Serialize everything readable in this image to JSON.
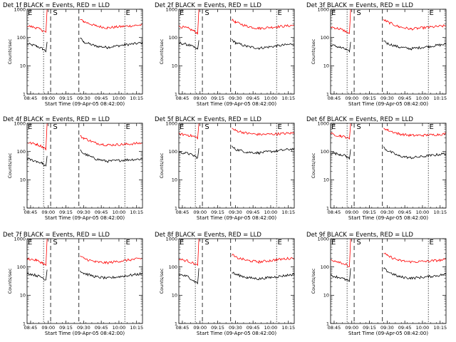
{
  "figure": {
    "background": "#ffffff",
    "colors": {
      "events": "#000000",
      "lld": "#ff0000"
    }
  },
  "chart_data": [
    {
      "type": "line",
      "title": "Det 1f BLACK = Events, RED = LLD",
      "xlabel": "Start Time (09-Apr-05 08:42:00)",
      "ylabel": "Counts/sec",
      "yscale": "log",
      "ylim": [
        1,
        1000
      ],
      "x_ticks": [
        "08:45",
        "09:00",
        "09:15",
        "09:30",
        "09:45",
        "10:00",
        "10:15"
      ],
      "y_ticks": [
        "1",
        "10",
        "100",
        "1000"
      ],
      "markers": {
        "left": "E",
        "middle": "S",
        "right": "E"
      },
      "legend": "none (encoded in title)",
      "grid": false,
      "series": [
        {
          "name": "Events",
          "color": "#000000",
          "x": [
            "08:42",
            "08:50",
            "08:55",
            "08:58",
            "08:59",
            "09:26",
            "09:27",
            "09:30",
            "09:40",
            "09:50",
            "10:05",
            "10:20"
          ],
          "values": [
            60,
            50,
            40,
            33,
            70,
            null,
            95,
            70,
            50,
            45,
            55,
            65
          ]
        },
        {
          "name": "LLD",
          "color": "#ff0000",
          "x": [
            "08:42",
            "08:50",
            "08:55",
            "08:58",
            "08:59",
            "09:26",
            "09:27",
            "09:30",
            "09:40",
            "09:50",
            "10:05",
            "10:20"
          ],
          "values": [
            260,
            220,
            180,
            150,
            1000,
            null,
            430,
            370,
            260,
            220,
            250,
            280
          ]
        }
      ]
    },
    {
      "type": "line",
      "title": "Det 2f BLACK = Events, RED = LLD",
      "xlabel": "Start Time (09-Apr-05 08:42:00)",
      "ylabel": "Counts/sec",
      "yscale": "log",
      "ylim": [
        1,
        1000
      ],
      "x_ticks": [
        "08:45",
        "09:00",
        "09:15",
        "09:30",
        "09:45",
        "10:00",
        "10:15"
      ],
      "y_ticks": [
        "1",
        "10",
        "100",
        "1000"
      ],
      "markers": {
        "left": "E",
        "middle": "S",
        "right": "E"
      },
      "legend": "none (encoded in title)",
      "grid": false,
      "series": [
        {
          "name": "Events",
          "color": "#000000",
          "x": [
            "08:42",
            "08:50",
            "08:55",
            "08:58",
            "08:59",
            "09:26",
            "09:27",
            "09:30",
            "09:40",
            "09:50",
            "10:05",
            "10:20"
          ],
          "values": [
            65,
            55,
            45,
            38,
            80,
            null,
            85,
            65,
            48,
            42,
            50,
            60
          ]
        },
        {
          "name": "LLD",
          "color": "#ff0000",
          "x": [
            "08:42",
            "08:50",
            "08:55",
            "08:58",
            "08:59",
            "09:26",
            "09:27",
            "09:30",
            "09:40",
            "09:50",
            "10:05",
            "10:20"
          ],
          "values": [
            250,
            210,
            170,
            140,
            1000,
            null,
            420,
            350,
            250,
            210,
            240,
            270
          ]
        }
      ]
    },
    {
      "type": "line",
      "title": "Det 3f BLACK = Events, RED = LLD",
      "xlabel": "Start Time (09-Apr-05 08:42:00)",
      "ylabel": "Counts/sec",
      "yscale": "log",
      "ylim": [
        1,
        1000
      ],
      "x_ticks": [
        "08:45",
        "09:00",
        "09:15",
        "09:30",
        "09:45",
        "10:00",
        "10:15"
      ],
      "y_ticks": [
        "1",
        "10",
        "100",
        "1000"
      ],
      "markers": {
        "left": "E",
        "middle": "S",
        "right": "E"
      },
      "legend": "none (encoded in title)",
      "grid": false,
      "series": [
        {
          "name": "Events",
          "color": "#000000",
          "x": [
            "08:42",
            "08:50",
            "08:55",
            "08:58",
            "08:59",
            "09:26",
            "09:27",
            "09:30",
            "09:40",
            "09:50",
            "10:05",
            "10:20"
          ],
          "values": [
            55,
            45,
            38,
            30,
            70,
            null,
            80,
            62,
            46,
            40,
            48,
            58
          ]
        },
        {
          "name": "LLD",
          "color": "#ff0000",
          "x": [
            "08:42",
            "08:50",
            "08:55",
            "08:58",
            "08:59",
            "09:26",
            "09:27",
            "09:30",
            "09:40",
            "09:50",
            "10:05",
            "10:20"
          ],
          "values": [
            240,
            200,
            165,
            135,
            1000,
            null,
            430,
            360,
            240,
            200,
            230,
            260
          ]
        }
      ]
    },
    {
      "type": "line",
      "title": "Det 4f BLACK = Events, RED = LLD",
      "xlabel": "Start Time (09-Apr-05 08:42:00)",
      "ylabel": "Counts/sec",
      "yscale": "log",
      "ylim": [
        1,
        1000
      ],
      "x_ticks": [
        "08:45",
        "09:00",
        "09:15",
        "09:30",
        "09:45",
        "10:00",
        "10:15"
      ],
      "y_ticks": [
        "1",
        "10",
        "100",
        "1000"
      ],
      "markers": {
        "left": "E",
        "middle": "S",
        "right": "E"
      },
      "legend": "none (encoded in title)",
      "grid": false,
      "series": [
        {
          "name": "Events",
          "color": "#000000",
          "x": [
            "08:42",
            "08:50",
            "08:55",
            "08:58",
            "08:59",
            "09:26",
            "09:27",
            "09:30",
            "09:40",
            "09:50",
            "10:05",
            "10:20"
          ],
          "values": [
            55,
            45,
            38,
            30,
            70,
            null,
            110,
            85,
            55,
            45,
            50,
            55
          ]
        },
        {
          "name": "LLD",
          "color": "#ff0000",
          "x": [
            "08:42",
            "08:50",
            "08:55",
            "08:58",
            "08:59",
            "09:26",
            "09:27",
            "09:30",
            "09:40",
            "09:50",
            "10:05",
            "10:20"
          ],
          "values": [
            210,
            180,
            150,
            120,
            1000,
            null,
            350,
            300,
            200,
            170,
            180,
            200
          ]
        }
      ]
    },
    {
      "type": "line",
      "title": "Det 5f BLACK = Events, RED = LLD",
      "xlabel": "Start Time (09-Apr-05 08:42:00)",
      "ylabel": "Counts/sec",
      "yscale": "log",
      "ylim": [
        1,
        1000
      ],
      "x_ticks": [
        "08:45",
        "09:00",
        "09:15",
        "09:30",
        "09:45",
        "10:00",
        "10:15"
      ],
      "y_ticks": [
        "1",
        "10",
        "100",
        "1000"
      ],
      "markers": {
        "left": "E",
        "middle": "S",
        "right": "E"
      },
      "legend": "none (encoded in title)",
      "grid": false,
      "series": [
        {
          "name": "Events",
          "color": "#000000",
          "x": [
            "08:42",
            "08:50",
            "08:55",
            "08:58",
            "08:59",
            "09:26",
            "09:27",
            "09:30",
            "09:40",
            "09:50",
            "10:05",
            "10:20"
          ],
          "values": [
            95,
            85,
            70,
            60,
            130,
            null,
            150,
            120,
            95,
            90,
            105,
            125
          ]
        },
        {
          "name": "LLD",
          "color": "#ff0000",
          "x": [
            "08:42",
            "08:50",
            "08:55",
            "08:58",
            "08:59",
            "09:26",
            "09:27",
            "09:30",
            "09:40",
            "09:50",
            "10:05",
            "10:20"
          ],
          "values": [
            420,
            380,
            340,
            300,
            1000,
            null,
            650,
            560,
            440,
            400,
            420,
            450
          ]
        }
      ]
    },
    {
      "type": "line",
      "title": "Det 6f BLACK = Events, RED = LLD",
      "xlabel": "Start Time (09-Apr-05 08:42:00)",
      "ylabel": "Counts/sec",
      "yscale": "log",
      "ylim": [
        1,
        1000
      ],
      "x_ticks": [
        "08:45",
        "09:00",
        "09:15",
        "09:30",
        "09:45",
        "10:00",
        "10:15"
      ],
      "y_ticks": [
        "1",
        "10",
        "100",
        "1000"
      ],
      "markers": {
        "left": "E",
        "middle": "S",
        "right": "E"
      },
      "legend": "none (encoded in title)",
      "grid": false,
      "series": [
        {
          "name": "Events",
          "color": "#000000",
          "x": [
            "08:42",
            "08:50",
            "08:55",
            "08:58",
            "08:59",
            "09:26",
            "09:27",
            "09:30",
            "09:40",
            "09:50",
            "10:05",
            "10:20"
          ],
          "values": [
            90,
            80,
            70,
            55,
            120,
            null,
            140,
            110,
            70,
            60,
            70,
            85
          ]
        },
        {
          "name": "LLD",
          "color": "#ff0000",
          "x": [
            "08:42",
            "08:50",
            "08:55",
            "08:58",
            "08:59",
            "09:26",
            "09:27",
            "09:30",
            "09:40",
            "09:50",
            "10:05",
            "10:20"
          ],
          "values": [
            420,
            360,
            320,
            270,
            1000,
            null,
            700,
            580,
            420,
            370,
            380,
            420
          ]
        }
      ]
    },
    {
      "type": "line",
      "title": "Det 7f BLACK = Events, RED = LLD",
      "xlabel": "Start Time (09-Apr-05 08:42:00)",
      "ylabel": "Counts/sec",
      "yscale": "log",
      "ylim": [
        1,
        1000
      ],
      "x_ticks": [
        "08:45",
        "09:00",
        "09:15",
        "09:30",
        "09:45",
        "10:00",
        "10:15"
      ],
      "y_ticks": [
        "1",
        "10",
        "100",
        "1000"
      ],
      "markers": {
        "left": "E",
        "middle": "S",
        "right": "E"
      },
      "legend": "none (encoded in title)",
      "grid": false,
      "series": [
        {
          "name": "Events",
          "color": "#000000",
          "x": [
            "08:42",
            "08:50",
            "08:55",
            "08:58",
            "08:59",
            "09:26",
            "09:27",
            "09:30",
            "09:40",
            "09:50",
            "10:05",
            "10:20"
          ],
          "values": [
            60,
            50,
            42,
            35,
            80,
            null,
            75,
            60,
            45,
            40,
            48,
            58
          ]
        },
        {
          "name": "LLD",
          "color": "#ff0000",
          "x": [
            "08:42",
            "08:50",
            "08:55",
            "08:58",
            "08:59",
            "09:26",
            "09:27",
            "09:30",
            "09:40",
            "09:50",
            "10:05",
            "10:20"
          ],
          "values": [
            200,
            170,
            140,
            110,
            1000,
            null,
            250,
            200,
            150,
            140,
            170,
            200
          ]
        }
      ]
    },
    {
      "type": "line",
      "title": "Det 8f BLACK = Events, RED = LLD",
      "xlabel": "Start Time (09-Apr-05 08:42:00)",
      "ylabel": "Counts/sec",
      "yscale": "log",
      "ylim": [
        1,
        1000
      ],
      "x_ticks": [
        "08:45",
        "09:00",
        "09:15",
        "09:30",
        "09:45",
        "10:00",
        "10:15"
      ],
      "y_ticks": [
        "1",
        "10",
        "100",
        "1000"
      ],
      "markers": {
        "left": "E",
        "middle": "S",
        "right": "E"
      },
      "legend": "none (encoded in title)",
      "grid": false,
      "series": [
        {
          "name": "Events",
          "color": "#000000",
          "x": [
            "08:42",
            "08:50",
            "08:55",
            "08:58",
            "08:59",
            "09:26",
            "09:27",
            "09:30",
            "09:40",
            "09:50",
            "10:05",
            "10:20"
          ],
          "values": [
            55,
            45,
            32,
            26,
            90,
            null,
            65,
            55,
            42,
            38,
            45,
            55
          ]
        },
        {
          "name": "LLD",
          "color": "#ff0000",
          "x": [
            "08:42",
            "08:50",
            "08:55",
            "08:58",
            "08:59",
            "09:26",
            "09:27",
            "09:30",
            "09:40",
            "09:50",
            "10:05",
            "10:20"
          ],
          "values": [
            190,
            160,
            130,
            110,
            1000,
            null,
            280,
            220,
            170,
            150,
            180,
            210
          ]
        }
      ]
    },
    {
      "type": "line",
      "title": "Det 9f BLACK = Events, RED = LLD",
      "xlabel": "Start Time (09-Apr-05 08:42:00)",
      "ylabel": "Counts/sec",
      "yscale": "log",
      "ylim": [
        1,
        1000
      ],
      "x_ticks": [
        "08:45",
        "09:00",
        "09:15",
        "09:30",
        "09:45",
        "10:00",
        "10:15"
      ],
      "y_ticks": [
        "1",
        "10",
        "100",
        "1000"
      ],
      "markers": {
        "left": "E",
        "middle": "S",
        "right": "E"
      },
      "legend": "none (encoded in title)",
      "grid": false,
      "series": [
        {
          "name": "Events",
          "color": "#000000",
          "x": [
            "08:42",
            "08:50",
            "08:55",
            "08:58",
            "08:59",
            "09:26",
            "09:27",
            "09:30",
            "09:40",
            "09:50",
            "10:05",
            "10:20"
          ],
          "values": [
            50,
            42,
            35,
            30,
            90,
            null,
            90,
            70,
            45,
            40,
            45,
            55
          ]
        },
        {
          "name": "LLD",
          "color": "#ff0000",
          "x": [
            "08:42",
            "08:50",
            "08:55",
            "08:58",
            "08:59",
            "09:26",
            "09:27",
            "09:30",
            "09:40",
            "09:50",
            "10:05",
            "10:20"
          ],
          "values": [
            180,
            150,
            120,
            100,
            1000,
            null,
            320,
            250,
            170,
            150,
            160,
            180
          ]
        }
      ]
    }
  ]
}
